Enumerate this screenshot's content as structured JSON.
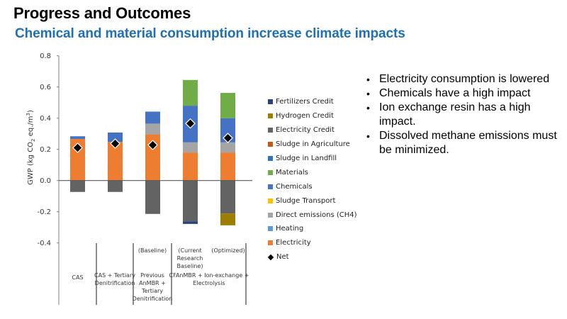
{
  "slide": {
    "title": "Progress and Outcomes",
    "subtitle": "Chemical and material consumption increase climate impacts",
    "bullets": [
      "Electricity consumption is lowered",
      "Chemicals have a high impact",
      "Ion exchange resin has a high impact.",
      "Dissolved methane emissions must be minimized."
    ]
  },
  "chart_data": {
    "type": "bar",
    "stacked": true,
    "title": "",
    "xlabel": "",
    "ylabel": "GWP (kg CO2 eq./m3)",
    "ylabel_parts": {
      "pre": "GWP (kg CO",
      "sub": "2",
      "mid": " eq./m",
      "sup": "3",
      "post": ")"
    },
    "ylim": [
      -0.4,
      0.8
    ],
    "yticks": [
      "0.8",
      "0.6",
      "0.4",
      "0.2",
      "0.0",
      "-0.2",
      "-0.4"
    ],
    "ytick_values": [
      0.8,
      0.6,
      0.4,
      0.2,
      0.0,
      -0.2,
      -0.4
    ],
    "grid": false,
    "legend_position": "right",
    "categories": [
      {
        "top": "",
        "bottom": "CAS"
      },
      {
        "top": "",
        "bottom": "CAS + Tertiary Denitrification"
      },
      {
        "top": "(Baseline)",
        "bottom": "Previous AnMBR + Tertiary Denitrification"
      },
      {
        "top": "(Current Research Baseline)",
        "bottom": ""
      },
      {
        "top": "(Optimized)",
        "bottom": ""
      }
    ],
    "group_labels": [
      {
        "label_lines": [
          "CAS"
        ],
        "spans": [
          0
        ]
      },
      {
        "label_lines": [
          "CAS + Tertiary",
          "Denitrification"
        ],
        "spans": [
          1
        ]
      },
      {
        "label_lines": [
          "Previous",
          "AnMBR +",
          "Tertiary",
          "Denitrification"
        ],
        "top_lines": [
          "(Baseline)"
        ],
        "spans": [
          2
        ]
      },
      {
        "label_lines": [
          "CFAnMBR + Ion-exchange +",
          "Electrolysis"
        ],
        "spans": [
          3,
          4
        ]
      }
    ],
    "top_labels": [
      {
        "lines": [],
        "bar": 0
      },
      {
        "lines": [],
        "bar": 1
      },
      {
        "lines": [
          "(Baseline)"
        ],
        "bar": 2
      },
      {
        "lines": [
          "(Current",
          "Research",
          "Baseline)"
        ],
        "bar": 3
      },
      {
        "lines": [
          "(Optimized)"
        ],
        "bar": 4
      }
    ],
    "series": [
      {
        "name": "Fertilizers Credit",
        "color": "#264478",
        "values": [
          0,
          0,
          0,
          -0.016,
          0
        ]
      },
      {
        "name": "Hydrogen Credit",
        "color": "#9e7e00",
        "values": [
          0,
          0,
          0,
          0,
          -0.076
        ]
      },
      {
        "name": "Electricity Credit",
        "color": "#636363",
        "values": [
          -0.073,
          -0.073,
          -0.214,
          -0.262,
          -0.211
        ]
      },
      {
        "name": "Sludge in Agriculture",
        "color": "#c55a11",
        "values": [
          0,
          0,
          0,
          0,
          0
        ]
      },
      {
        "name": "Sludge in Landfill",
        "color": "#2e75b6",
        "values": [
          0,
          0,
          0,
          0,
          0
        ]
      },
      {
        "name": "Materials",
        "color": "#70ad47",
        "values": [
          0,
          0,
          0,
          0.165,
          0.163
        ]
      },
      {
        "name": "Chemicals",
        "color": "#4472c4",
        "values": [
          0.017,
          0.06,
          0.077,
          0.235,
          0.154
        ]
      },
      {
        "name": "Sludge Transport",
        "color": "#ffc000",
        "values": [
          0,
          0,
          0,
          0,
          0
        ]
      },
      {
        "name": "Direct emissions (CH4)",
        "color": "#a5a5a5",
        "values": [
          0,
          0,
          0.069,
          0.065,
          0.065
        ]
      },
      {
        "name": "Heating",
        "color": "#5b9bd5",
        "values": [
          0,
          0,
          0,
          0,
          0
        ]
      },
      {
        "name": "Electricity",
        "color": "#ed7d31",
        "values": [
          0.267,
          0.248,
          0.296,
          0.18,
          0.18
        ]
      }
    ],
    "net": {
      "name": "Net",
      "color": "#000000",
      "values": [
        0.21,
        0.237,
        0.228,
        0.366,
        0.273
      ]
    },
    "stack_order_positive": [
      "Electricity",
      "Heating",
      "Direct emissions (CH4)",
      "Sludge Transport",
      "Chemicals",
      "Materials",
      "Sludge in Landfill",
      "Sludge in Agriculture"
    ],
    "stack_order_negative": [
      "Electricity Credit",
      "Hydrogen Credit",
      "Fertilizers Credit"
    ]
  }
}
